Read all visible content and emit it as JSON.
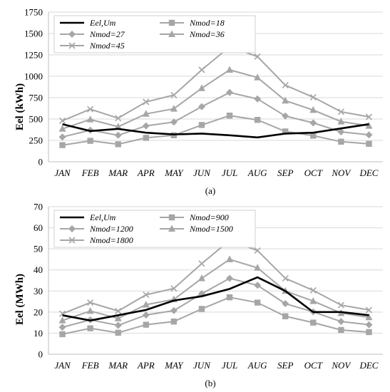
{
  "chart_data": [
    {
      "type": "line",
      "caption": "(a)",
      "ylabel": "Eel (kWh)",
      "xlabel": "",
      "ylim": [
        0,
        1750
      ],
      "yticks": [
        0,
        250,
        500,
        750,
        1000,
        1250,
        1500,
        1750
      ],
      "grid": "horizontal",
      "legend": "top-left",
      "categories": [
        "JAN",
        "FEB",
        "MAR",
        "APR",
        "MAY",
        "JUN",
        "JUL",
        "AUG",
        "SEP",
        "OCT",
        "NOV",
        "DEC"
      ],
      "series": [
        {
          "name": "Eel,Um",
          "marker": "none",
          "color": "#000000",
          "values": [
            440,
            360,
            385,
            340,
            320,
            330,
            310,
            285,
            330,
            340,
            390,
            440
          ]
        },
        {
          "name": "Nmod=18",
          "marker": "square",
          "color": "#a6a6a6",
          "values": [
            195,
            245,
            205,
            280,
            310,
            430,
            540,
            490,
            355,
            305,
            235,
            210
          ]
        },
        {
          "name": "Nmod=27",
          "marker": "diamond",
          "color": "#a6a6a6",
          "values": [
            290,
            370,
            310,
            420,
            465,
            645,
            810,
            735,
            535,
            455,
            350,
            315
          ]
        },
        {
          "name": "Nmod=36",
          "marker": "triangle",
          "color": "#a6a6a6",
          "values": [
            385,
            495,
            410,
            560,
            620,
            860,
            1075,
            985,
            715,
            605,
            470,
            420
          ]
        },
        {
          "name": "Nmod=45",
          "marker": "cross",
          "color": "#a6a6a6",
          "values": [
            480,
            615,
            510,
            700,
            780,
            1075,
            1345,
            1230,
            895,
            755,
            585,
            525
          ]
        }
      ]
    },
    {
      "type": "line",
      "caption": "(b)",
      "ylabel": "Eel (MWh)",
      "xlabel": "",
      "ylim": [
        0,
        70
      ],
      "yticks": [
        0,
        10,
        20,
        30,
        40,
        50,
        60,
        70
      ],
      "grid": "horizontal",
      "legend": "top-left",
      "categories": [
        "JAN",
        "FEB",
        "MAR",
        "APR",
        "MAY",
        "JUN",
        "JUL",
        "AUG",
        "SEP",
        "OCT",
        "NOV",
        "DEC"
      ],
      "series": [
        {
          "name": "Eel,Um",
          "marker": "none",
          "color": "#000000",
          "values": [
            18.5,
            16,
            18.5,
            21,
            25.5,
            27.5,
            31,
            36.5,
            30,
            20,
            20,
            18.5
          ]
        },
        {
          "name": "Nmod=900",
          "marker": "square",
          "color": "#a6a6a6",
          "values": [
            9.5,
            12.3,
            10.2,
            14,
            15.5,
            21.5,
            27,
            24.5,
            18,
            15,
            11.5,
            10.5
          ]
        },
        {
          "name": "Nmod=1200",
          "marker": "diamond",
          "color": "#a6a6a6",
          "values": [
            12.8,
            16.3,
            13.7,
            18.6,
            20.7,
            28.7,
            36,
            32.7,
            24,
            20.1,
            15.5,
            14
          ]
        },
        {
          "name": "Nmod=1500",
          "marker": "triangle",
          "color": "#a6a6a6",
          "values": [
            16,
            20.5,
            17,
            23.5,
            26,
            36,
            45,
            41,
            30,
            25.2,
            19.5,
            17.5
          ]
        },
        {
          "name": "Nmod=1800",
          "marker": "cross",
          "color": "#a6a6a6",
          "values": [
            19.2,
            24.5,
            20.5,
            28.2,
            31.2,
            43,
            54,
            49.2,
            36,
            30.3,
            23.3,
            21
          ]
        }
      ]
    }
  ]
}
